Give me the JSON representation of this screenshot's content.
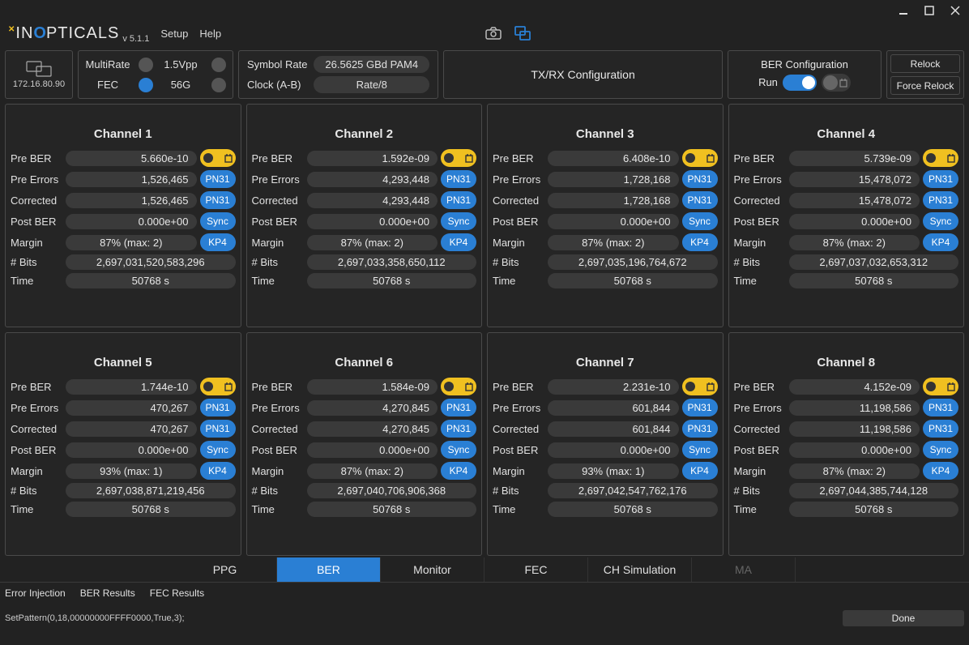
{
  "window": {
    "version": "v 5.1.1",
    "menus": [
      "Setup",
      "Help"
    ]
  },
  "ip": "172.16.80.90",
  "config": {
    "multirate": {
      "label": "MultiRate",
      "on": false
    },
    "vpp": {
      "label": "1.5Vpp",
      "on": false
    },
    "fec": {
      "label": "FEC",
      "on": true
    },
    "speed": {
      "label": "56G",
      "on": false
    }
  },
  "rate": {
    "symbol_label": "Symbol Rate",
    "symbol_value": "26.5625 GBd PAM4",
    "clock_label": "Clock (A-B)",
    "clock_value": "Rate/8"
  },
  "txrx": "TX/RX Configuration",
  "ber_cfg": {
    "title": "BER Configuration",
    "run_label": "Run"
  },
  "relock": {
    "relock": "Relock",
    "force": "Force Relock"
  },
  "row_labels": {
    "preber": "Pre BER",
    "preerr": "Pre Errors",
    "corr": "Corrected",
    "postber": "Post BER",
    "margin": "Margin",
    "bits": "# Bits",
    "time": "Time"
  },
  "badges": {
    "pn31": "PN31",
    "sync": "Sync",
    "kp4": "KP4"
  },
  "channels": [
    {
      "title": "Channel 1",
      "preber": "5.660e-10",
      "preerr": "1,526,465",
      "corr": "1,526,465",
      "postber": "0.000e+00",
      "margin": "87% (max: 2)",
      "bits": "2,697,031,520,583,296",
      "time": "50768 s"
    },
    {
      "title": "Channel 2",
      "preber": "1.592e-09",
      "preerr": "4,293,448",
      "corr": "4,293,448",
      "postber": "0.000e+00",
      "margin": "87% (max: 2)",
      "bits": "2,697,033,358,650,112",
      "time": "50768 s"
    },
    {
      "title": "Channel 3",
      "preber": "6.408e-10",
      "preerr": "1,728,168",
      "corr": "1,728,168",
      "postber": "0.000e+00",
      "margin": "87% (max: 2)",
      "bits": "2,697,035,196,764,672",
      "time": "50768 s"
    },
    {
      "title": "Channel 4",
      "preber": "5.739e-09",
      "preerr": "15,478,072",
      "corr": "15,478,072",
      "postber": "0.000e+00",
      "margin": "87% (max: 2)",
      "bits": "2,697,037,032,653,312",
      "time": "50768 s"
    },
    {
      "title": "Channel 5",
      "preber": "1.744e-10",
      "preerr": "470,267",
      "corr": "470,267",
      "postber": "0.000e+00",
      "margin": "93% (max: 1)",
      "bits": "2,697,038,871,219,456",
      "time": "50768 s"
    },
    {
      "title": "Channel 6",
      "preber": "1.584e-09",
      "preerr": "4,270,845",
      "corr": "4,270,845",
      "postber": "0.000e+00",
      "margin": "87% (max: 2)",
      "bits": "2,697,040,706,906,368",
      "time": "50768 s"
    },
    {
      "title": "Channel 7",
      "preber": "2.231e-10",
      "preerr": "601,844",
      "corr": "601,844",
      "postber": "0.000e+00",
      "margin": "93% (max: 1)",
      "bits": "2,697,042,547,762,176",
      "time": "50768 s"
    },
    {
      "title": "Channel 8",
      "preber": "4.152e-09",
      "preerr": "11,198,586",
      "corr": "11,198,586",
      "postber": "0.000e+00",
      "margin": "87% (max: 2)",
      "bits": "2,697,044,385,744,128",
      "time": "50768 s"
    }
  ],
  "tabs": [
    "PPG",
    "BER",
    "Monitor",
    "FEC",
    "CH Simulation",
    "MA"
  ],
  "active_tab": 1,
  "disabled_tab": 5,
  "subtabs": [
    "Error Injection",
    "BER Results",
    "FEC Results"
  ],
  "status_text": "SetPattern(0,18,00000000FFFF0000,True,3);",
  "done": "Done",
  "colors": {
    "bg": "#222222",
    "panel_border": "#4a4a4a",
    "pill_bg": "#3a3a3a",
    "accent_blue": "#2a7fd4",
    "accent_yellow": "#f0c020",
    "text": "#e8e8e8"
  }
}
